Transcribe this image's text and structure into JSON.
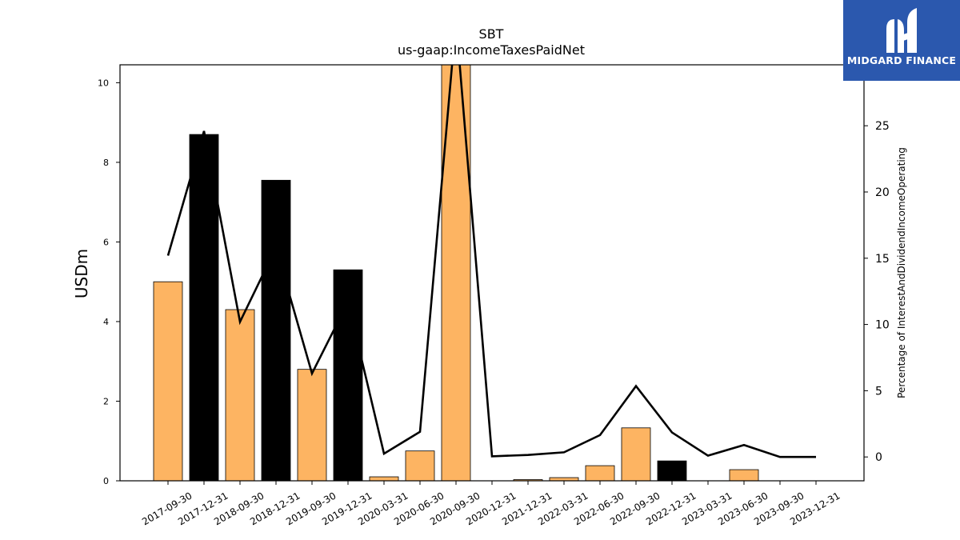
{
  "chart_data": {
    "type": "bar",
    "title": "SBT",
    "subtitle": "us-gaap:IncomeTaxesPaidNet",
    "ylabel": "USDm",
    "y2label": "Percentage of InterestAndDividendIncomeOperating",
    "ylim": [
      0,
      10.45
    ],
    "y2lim": [
      -1.8,
      29.6
    ],
    "yticks": [
      0,
      2,
      4,
      6,
      8,
      10
    ],
    "y2ticks": [
      0,
      5,
      10,
      15,
      20,
      25
    ],
    "categories": [
      "2017-09-30",
      "2017-12-31",
      "2018-09-30",
      "2018-12-31",
      "2019-09-30",
      "2019-12-31",
      "2020-03-31",
      "2020-06-30",
      "2020-09-30",
      "2020-12-31",
      "2021-12-31",
      "2022-03-31",
      "2022-06-30",
      "2022-09-30",
      "2022-12-31",
      "2023-03-31",
      "2023-06-30",
      "2023-09-30",
      "2023-12-31"
    ],
    "series": [
      {
        "kind": "bar",
        "values": [
          5.0,
          8.7,
          4.3,
          7.55,
          2.8,
          5.3,
          0.1,
          0.75,
          10.6,
          0.0,
          0.03,
          0.08,
          0.38,
          1.33,
          0.5,
          0.0,
          0.28,
          0.0,
          0.0
        ],
        "colors": [
          "#fdb462",
          "#000000",
          "#fdb462",
          "#000000",
          "#fdb462",
          "#000000",
          "#fdb462",
          "#fdb462",
          "#fdb462",
          "#fdb462",
          "#fdb462",
          "#fdb462",
          "#fdb462",
          "#fdb462",
          "#000000",
          "#fdb462",
          "#fdb462",
          "#fdb462",
          "#fdb462"
        ]
      },
      {
        "kind": "line",
        "axis": "right",
        "color": "#000000",
        "values": [
          15.2,
          24.6,
          10.2,
          15.8,
          6.3,
          11.7,
          0.25,
          1.9,
          33.0,
          0.05,
          0.15,
          0.35,
          1.65,
          5.35,
          1.85,
          0.1,
          0.9,
          0.0,
          0.0
        ]
      }
    ]
  },
  "logo": {
    "text": "MIDGARD FINANCE",
    "icon": "midgard-logo-icon",
    "background": "#2b58ae"
  }
}
